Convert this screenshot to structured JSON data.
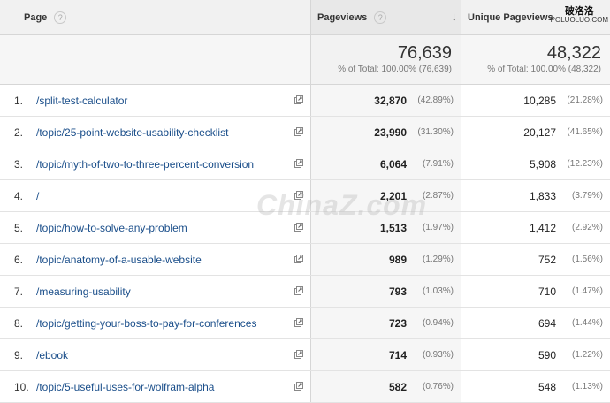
{
  "header": {
    "page": "Page",
    "help_icon": "?",
    "pageviews": "Pageviews",
    "unique_pageviews": "Unique Pageviews"
  },
  "totals": {
    "pageviews": "76,639",
    "pageviews_sub": "% of Total: 100.00% (76,639)",
    "unique": "48,322",
    "unique_sub": "% of Total: 100.00% (48,322)"
  },
  "rows": [
    {
      "num": "1.",
      "page": "/split-test-calculator",
      "pv": "32,870",
      "pv_pct": "(42.89%)",
      "upv": "10,285",
      "upv_pct": "(21.28%)"
    },
    {
      "num": "2.",
      "page": "/topic/25-point-website-usability-checklist",
      "pv": "23,990",
      "pv_pct": "(31.30%)",
      "upv": "20,127",
      "upv_pct": "(41.65%)"
    },
    {
      "num": "3.",
      "page": "/topic/myth-of-two-to-three-percent-conversion",
      "pv": "6,064",
      "pv_pct": "(7.91%)",
      "upv": "5,908",
      "upv_pct": "(12.23%)"
    },
    {
      "num": "4.",
      "page": "/",
      "pv": "2,201",
      "pv_pct": "(2.87%)",
      "upv": "1,833",
      "upv_pct": "(3.79%)"
    },
    {
      "num": "5.",
      "page": "/topic/how-to-solve-any-problem",
      "pv": "1,513",
      "pv_pct": "(1.97%)",
      "upv": "1,412",
      "upv_pct": "(2.92%)"
    },
    {
      "num": "6.",
      "page": "/topic/anatomy-of-a-usable-website",
      "pv": "989",
      "pv_pct": "(1.29%)",
      "upv": "752",
      "upv_pct": "(1.56%)"
    },
    {
      "num": "7.",
      "page": "/measuring-usability",
      "pv": "793",
      "pv_pct": "(1.03%)",
      "upv": "710",
      "upv_pct": "(1.47%)"
    },
    {
      "num": "8.",
      "page": "/topic/getting-your-boss-to-pay-for-conferences",
      "pv": "723",
      "pv_pct": "(0.94%)",
      "upv": "694",
      "upv_pct": "(1.44%)"
    },
    {
      "num": "9.",
      "page": "/ebook",
      "pv": "714",
      "pv_pct": "(0.93%)",
      "upv": "590",
      "upv_pct": "(1.22%)"
    },
    {
      "num": "10.",
      "page": "/topic/5-useful-uses-for-wolfram-alpha",
      "pv": "582",
      "pv_pct": "(0.76%)",
      "upv": "548",
      "upv_pct": "(1.13%)"
    }
  ],
  "watermark": "ChinaZ.com",
  "logo_mark": {
    "line1": "破洛洛",
    "line2": "POLUOLUO.COM"
  }
}
